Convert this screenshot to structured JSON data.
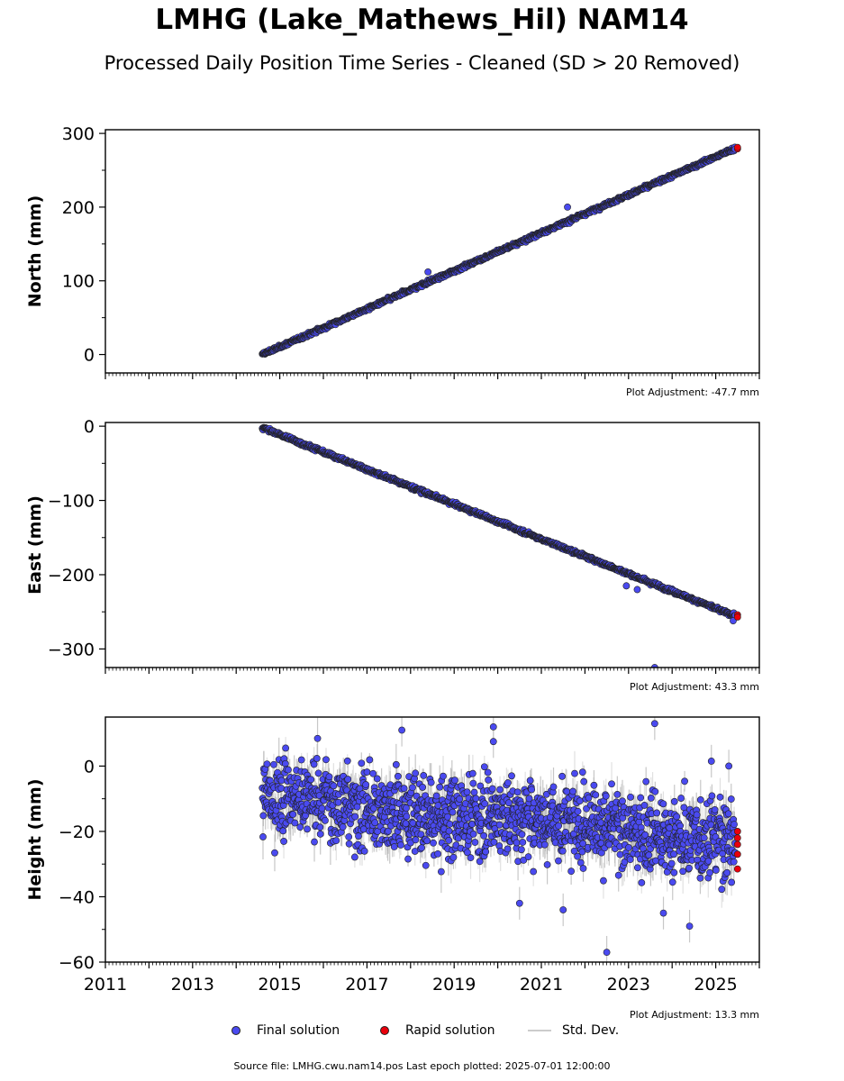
{
  "title": "LMHG (Lake_Mathews_Hil) NAM14",
  "subtitle": "Processed Daily Position Time Series - Cleaned (SD > 20 Removed)",
  "source_note": "Source file: LMHG.cwu.nam14.pos  Last epoch plotted: 2025-07-01 12:00:00",
  "legend": {
    "final": "Final solution",
    "rapid": "Rapid solution",
    "std": "Std. Dev."
  },
  "colors": {
    "final": "#4a4af0",
    "rapid": "#e8000b",
    "std": "#c8c8c8",
    "edge": "#222222"
  },
  "chart_data": [
    {
      "type": "scatter",
      "ylabel": "North (mm)",
      "xlim": [
        2011,
        2026
      ],
      "ylim": [
        -25,
        305
      ],
      "yticks": [
        0,
        100,
        200,
        300
      ],
      "yticklabels": [
        "0",
        "100",
        "200",
        "300"
      ],
      "adjustment": "Plot Adjustment: -47.7 mm",
      "series": [
        {
          "name": "Final solution",
          "trend": {
            "x": [
              2014.6,
              2025.45
            ],
            "y": [
              0,
              280
            ]
          },
          "noise_sd_mm": 2.0,
          "outliers": [
            {
              "x": 2021.6,
              "y": 200
            },
            {
              "x": 2018.4,
              "y": 112
            }
          ]
        },
        {
          "name": "Rapid solution",
          "points": [
            {
              "x": 2025.5,
              "y": 279
            },
            {
              "x": 2025.5,
              "y": 281
            }
          ]
        }
      ]
    },
    {
      "type": "scatter",
      "ylabel": "East (mm)",
      "xlim": [
        2011,
        2026
      ],
      "ylim": [
        -325,
        5
      ],
      "yticks": [
        0,
        -100,
        -200,
        -300
      ],
      "yticklabels": [
        "0",
        "−100",
        "−200",
        "−300"
      ],
      "adjustment": "Plot Adjustment: 43.3 mm",
      "series": [
        {
          "name": "Final solution",
          "trend": {
            "x": [
              2014.6,
              2025.45
            ],
            "y": [
              -2,
              -256
            ]
          },
          "noise_sd_mm": 2.0,
          "outliers": [
            {
              "x": 2023.2,
              "y": -220
            },
            {
              "x": 2022.95,
              "y": -215
            },
            {
              "x": 2023.6,
              "y": -325
            },
            {
              "x": 2025.4,
              "y": -262
            }
          ]
        },
        {
          "name": "Rapid solution",
          "points": [
            {
              "x": 2025.5,
              "y": -254
            },
            {
              "x": 2025.5,
              "y": -257
            }
          ]
        }
      ]
    },
    {
      "type": "scatter",
      "ylabel": "Height (mm)",
      "xlim": [
        2011,
        2026
      ],
      "ylim": [
        -60,
        15
      ],
      "yticks": [
        0,
        -20,
        -40,
        -60
      ],
      "yticklabels": [
        "0",
        "−20",
        "−40",
        "−60"
      ],
      "xticks": [
        2011,
        2013,
        2015,
        2017,
        2019,
        2021,
        2023,
        2025
      ],
      "xticklabels": [
        "2011",
        "2013",
        "2015",
        "2017",
        "2019",
        "2021",
        "2023",
        "2025"
      ],
      "adjustment": "Plot Adjustment: 13.3 mm",
      "series": [
        {
          "name": "Final solution",
          "trend": {
            "x": [
              2014.6,
              2016.0,
              2018.0,
              2020.0,
              2022.0,
              2024.0,
              2025.45
            ],
            "y": [
              -8,
              -10,
              -16,
              -15,
              -17,
              -22,
              -22
            ]
          },
          "noise_sd_mm": 6.0,
          "outliers": [
            {
              "x": 2022.5,
              "y": -57
            },
            {
              "x": 2019.9,
              "y": 12
            },
            {
              "x": 2019.9,
              "y": 7.5
            },
            {
              "x": 2023.6,
              "y": 13
            },
            {
              "x": 2017.8,
              "y": 11
            },
            {
              "x": 2020.5,
              "y": -42
            },
            {
              "x": 2024.4,
              "y": -49
            },
            {
              "x": 2024.9,
              "y": 1.5
            },
            {
              "x": 2025.3,
              "y": 0
            },
            {
              "x": 2021.5,
              "y": -44
            },
            {
              "x": 2023.8,
              "y": -45
            }
          ]
        },
        {
          "name": "Rapid solution",
          "points": [
            {
              "x": 2025.5,
              "y": -20
            },
            {
              "x": 2025.5,
              "y": -22
            },
            {
              "x": 2025.5,
              "y": -24
            },
            {
              "x": 2025.5,
              "y": -27
            },
            {
              "x": 2025.5,
              "y": -31.5
            }
          ]
        }
      ]
    }
  ]
}
